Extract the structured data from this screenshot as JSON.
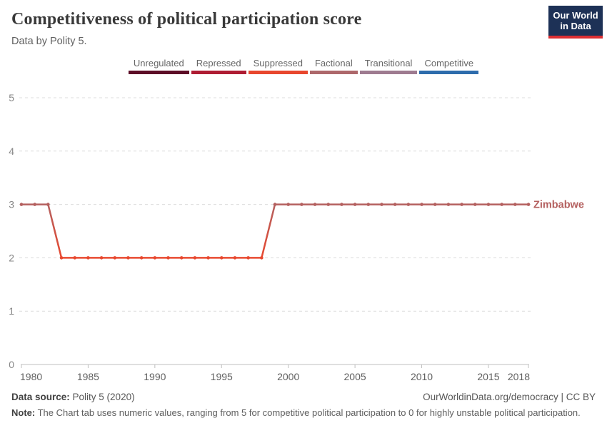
{
  "header": {
    "title": "Competitiveness of political participation score",
    "subtitle": "Data by Polity 5.",
    "logo": {
      "line1": "Our World",
      "line2": "in Data",
      "bg_color": "#1d3156",
      "accent_color": "#dc2e32"
    }
  },
  "legend": {
    "items": [
      {
        "label": "Unregulated",
        "color": "#5d0d27"
      },
      {
        "label": "Repressed",
        "color": "#ae1c33"
      },
      {
        "label": "Suppressed",
        "color": "#e8472e"
      },
      {
        "label": "Factional",
        "color": "#ad686b"
      },
      {
        "label": "Transitional",
        "color": "#9e7b90"
      },
      {
        "label": "Competitive",
        "color": "#2d6cac"
      }
    ]
  },
  "chart_data": {
    "type": "line",
    "title": "Competitiveness of political participation score",
    "entity": "Zimbabwe",
    "entity_color": "#b4605f",
    "value_colors": {
      "2": "#e8482f",
      "3": "#b4605f"
    },
    "xlim": [
      1980,
      2018
    ],
    "ylim": [
      0,
      5
    ],
    "x_ticks": [
      1980,
      1985,
      1990,
      1995,
      2000,
      2005,
      2010,
      2015,
      2018
    ],
    "y_ticks": [
      0,
      1,
      2,
      3,
      4,
      5
    ],
    "grid": "dashed-horizontal",
    "legend_position": "top-center",
    "points": [
      [
        1980,
        3
      ],
      [
        1981,
        3
      ],
      [
        1982,
        3
      ],
      [
        1983,
        2
      ],
      [
        1984,
        2
      ],
      [
        1985,
        2
      ],
      [
        1986,
        2
      ],
      [
        1987,
        2
      ],
      [
        1988,
        2
      ],
      [
        1989,
        2
      ],
      [
        1990,
        2
      ],
      [
        1991,
        2
      ],
      [
        1992,
        2
      ],
      [
        1993,
        2
      ],
      [
        1994,
        2
      ],
      [
        1995,
        2
      ],
      [
        1996,
        2
      ],
      [
        1997,
        2
      ],
      [
        1998,
        2
      ],
      [
        1999,
        3
      ],
      [
        2000,
        3
      ],
      [
        2001,
        3
      ],
      [
        2002,
        3
      ],
      [
        2003,
        3
      ],
      [
        2004,
        3
      ],
      [
        2005,
        3
      ],
      [
        2006,
        3
      ],
      [
        2007,
        3
      ],
      [
        2008,
        3
      ],
      [
        2009,
        3
      ],
      [
        2010,
        3
      ],
      [
        2011,
        3
      ],
      [
        2012,
        3
      ],
      [
        2013,
        3
      ],
      [
        2014,
        3
      ],
      [
        2015,
        3
      ],
      [
        2016,
        3
      ],
      [
        2017,
        3
      ],
      [
        2018,
        3
      ]
    ]
  },
  "footer": {
    "source_label": "Data source:",
    "source_value": " Polity 5 (2020)",
    "link": "OurWorldinData.org/democracy | CC BY",
    "note_label": "Note:",
    "note_value": " The Chart tab uses numeric values, ranging from 5 for competitive political participation to 0 for highly unstable political participation."
  }
}
